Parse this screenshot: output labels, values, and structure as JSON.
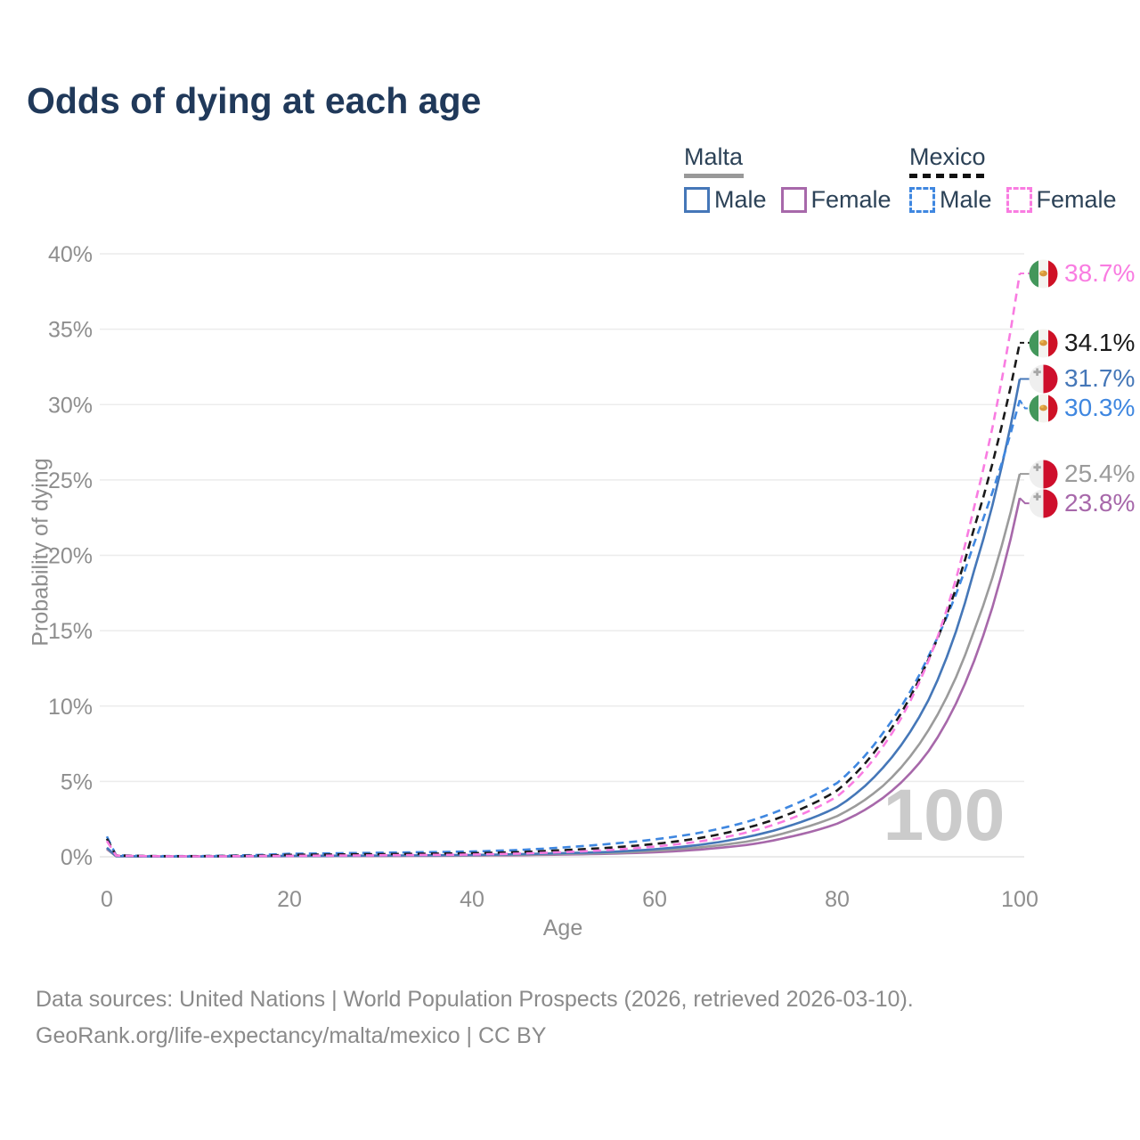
{
  "title": "Odds of dying at each age",
  "legend": {
    "groups": [
      {
        "country": "Malta",
        "line_style": "solid",
        "underline_color": "#999999",
        "items": [
          {
            "label": "Male",
            "color": "#4577b8"
          },
          {
            "label": "Female",
            "color": "#a768aa"
          }
        ]
      },
      {
        "country": "Mexico",
        "line_style": "dashed",
        "underline_color": "#111111",
        "items": [
          {
            "label": "Male",
            "color": "#3f87e0"
          },
          {
            "label": "Female",
            "color": "#f97ce1"
          }
        ]
      }
    ]
  },
  "chart_data": {
    "type": "line",
    "title": "Odds of dying at each age",
    "xlabel": "Age",
    "ylabel": "Probability of dying",
    "xlim": [
      0,
      100
    ],
    "ylim": [
      0,
      40
    ],
    "x_ticks": [
      0,
      20,
      40,
      60,
      80,
      100
    ],
    "y_ticks": [
      "0%",
      "5%",
      "10%",
      "15%",
      "20%",
      "25%",
      "30%",
      "35%",
      "40%"
    ],
    "grid": true,
    "legend_position": "top-right",
    "watermark": "100",
    "x": [
      0,
      1,
      5,
      10,
      15,
      20,
      30,
      40,
      45,
      50,
      55,
      60,
      65,
      70,
      75,
      80,
      85,
      90,
      95,
      100
    ],
    "series": [
      {
        "name": "Malta Female",
        "country": "Malta",
        "sex": "female",
        "color": "#a768aa",
        "dash": false,
        "flag": "malta",
        "end_label": "23.8%",
        "end_value": 23.8,
        "values": [
          0.5,
          0.035,
          0.016,
          0.015,
          0.025,
          0.04,
          0.05,
          0.08,
          0.1,
          0.15,
          0.2,
          0.3,
          0.48,
          0.78,
          1.35,
          2.2,
          3.9,
          7.0,
          13.0,
          23.8
        ]
      },
      {
        "name": "Malta Total",
        "country": "Malta",
        "sex": "both",
        "color": "#9b9b9b",
        "dash": false,
        "flag": "malta",
        "end_label": "25.4%",
        "end_value": 25.4,
        "values": [
          0.55,
          0.04,
          0.018,
          0.018,
          0.03,
          0.05,
          0.065,
          0.1,
          0.13,
          0.19,
          0.25,
          0.4,
          0.63,
          1.0,
          1.7,
          2.7,
          4.7,
          8.4,
          15.0,
          25.4
        ]
      },
      {
        "name": "Malta Male",
        "country": "Malta",
        "sex": "male",
        "color": "#4577b8",
        "dash": false,
        "flag": "malta",
        "end_label": "31.7%",
        "end_value": 31.7,
        "values": [
          0.6,
          0.05,
          0.02,
          0.02,
          0.04,
          0.06,
          0.08,
          0.12,
          0.17,
          0.24,
          0.32,
          0.5,
          0.8,
          1.3,
          2.1,
          3.3,
          5.9,
          10.4,
          19.0,
          31.7
        ]
      },
      {
        "name": "Mexico Male",
        "country": "Mexico",
        "sex": "male",
        "color": "#3f87e0",
        "dash": true,
        "flag": "mexico",
        "end_label": "30.3%",
        "end_value": 30.3,
        "values": [
          1.35,
          0.1,
          0.05,
          0.05,
          0.1,
          0.2,
          0.27,
          0.35,
          0.45,
          0.62,
          0.85,
          1.15,
          1.6,
          2.3,
          3.4,
          4.9,
          8.2,
          13.3,
          20.8,
          30.3
        ]
      },
      {
        "name": "Mexico Total",
        "country": "Mexico",
        "sex": "both",
        "color": "#1a1a1a",
        "dash": true,
        "flag": "mexico",
        "end_label": "34.1%",
        "end_value": 34.1,
        "values": [
          1.2,
          0.09,
          0.045,
          0.04,
          0.07,
          0.13,
          0.18,
          0.24,
          0.31,
          0.44,
          0.6,
          0.85,
          1.25,
          1.9,
          2.9,
          4.4,
          7.7,
          13.1,
          21.8,
          34.1
        ]
      },
      {
        "name": "Mexico Female",
        "country": "Mexico",
        "sex": "female",
        "color": "#f97ce1",
        "dash": true,
        "flag": "mexico",
        "end_label": "38.7%",
        "end_value": 38.7,
        "values": [
          1.05,
          0.08,
          0.04,
          0.03,
          0.045,
          0.065,
          0.1,
          0.15,
          0.21,
          0.31,
          0.45,
          0.68,
          1.02,
          1.6,
          2.55,
          4.0,
          7.3,
          13.0,
          23.2,
          38.7
        ]
      }
    ]
  },
  "footer": {
    "line1": "Data sources: United Nations | World Population Prospects (2026, retrieved 2026-03-10).",
    "line2": "GeoRank.org/life-expectancy/malta/mexico | CC BY"
  }
}
